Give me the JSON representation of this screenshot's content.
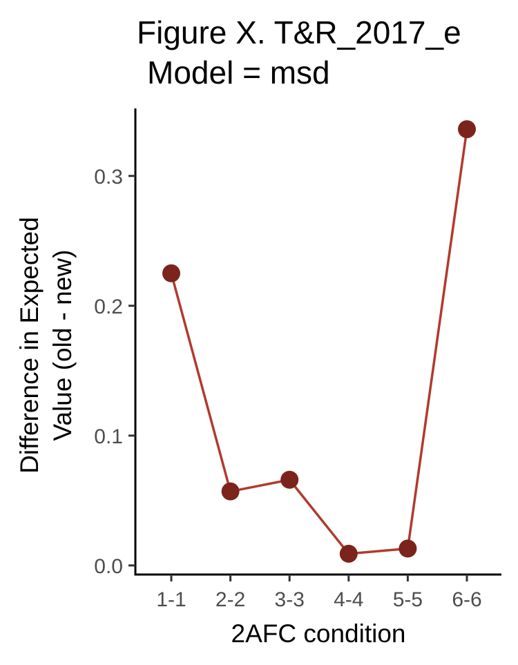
{
  "chart_data": {
    "type": "line",
    "title_lines": [
      "Figure X. T&R_2017_e",
      "Model = msd"
    ],
    "xlabel": "2AFC condition",
    "ylabel_lines": [
      "Difference in Expected",
      "Value (old - new)"
    ],
    "categories": [
      "1-1",
      "2-2",
      "3-3",
      "4-4",
      "5-5",
      "6-6"
    ],
    "values": [
      0.225,
      0.057,
      0.066,
      0.009,
      0.013,
      0.336
    ],
    "yticks": [
      0.0,
      0.1,
      0.2,
      0.3
    ],
    "ytick_labels": [
      "0.0",
      "0.1",
      "0.2",
      "0.3"
    ],
    "ylim": [
      -0.007,
      0.352
    ],
    "grid": false,
    "line_color": "#B03A2E",
    "point_color": "#7B241C"
  }
}
